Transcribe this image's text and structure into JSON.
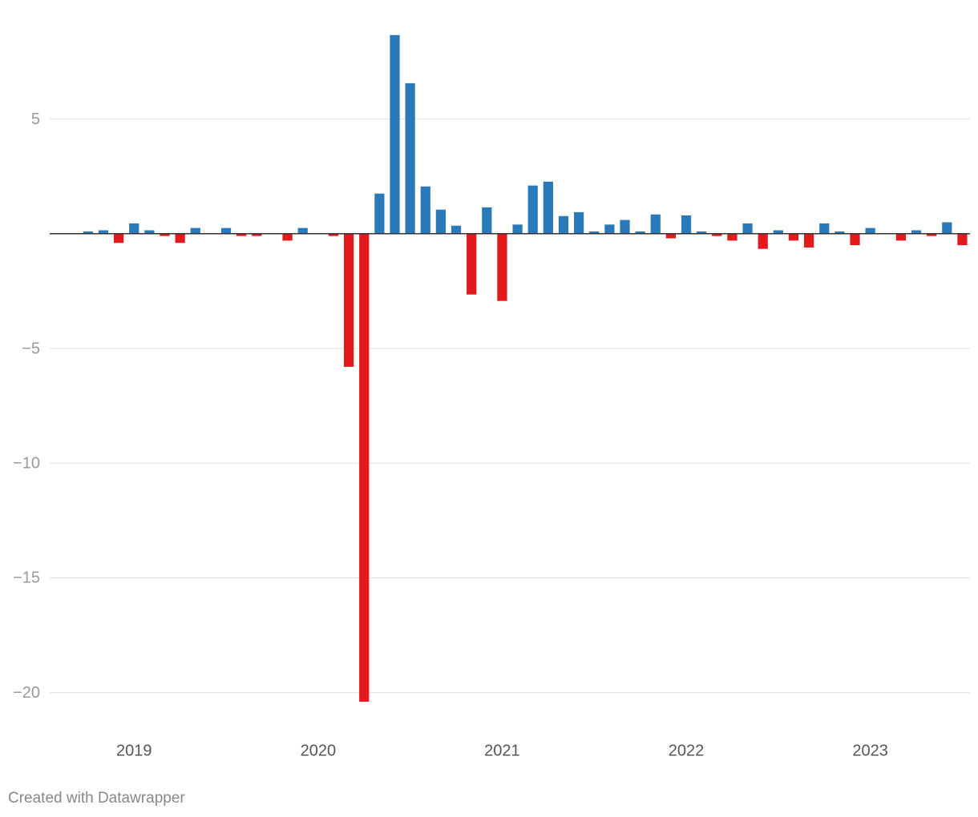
{
  "chart_data": {
    "type": "bar",
    "categories": [
      null,
      null,
      null,
      null,
      null,
      "2019",
      null,
      null,
      null,
      null,
      null,
      null,
      null,
      null,
      null,
      null,
      null,
      "2020",
      null,
      null,
      null,
      null,
      null,
      null,
      null,
      null,
      null,
      null,
      null,
      "2021",
      null,
      null,
      null,
      null,
      null,
      null,
      null,
      null,
      null,
      null,
      null,
      "2022",
      null,
      null,
      null,
      null,
      null,
      null,
      null,
      null,
      null,
      null,
      null,
      "2023",
      null,
      null,
      null,
      null,
      null,
      null
    ],
    "values": [
      0,
      0,
      0.1,
      0.15,
      -0.4,
      0.45,
      0.15,
      -0.1,
      -0.4,
      0.25,
      0,
      0.25,
      -0.1,
      -0.1,
      0,
      -0.3,
      0.25,
      0,
      -0.1,
      -5.8,
      -20.4,
      1.75,
      8.66,
      6.56,
      2.06,
      1.05,
      0.35,
      -2.65,
      1.15,
      -2.93,
      0.4,
      2.1,
      2.27,
      0.77,
      0.94,
      0.1,
      0.4,
      0.6,
      0.1,
      0.84,
      -0.2,
      0.8,
      0.1,
      -0.1,
      -0.3,
      0.45,
      -0.66,
      0.15,
      -0.3,
      -0.6,
      0.45,
      0.1,
      -0.5,
      0.25,
      0,
      -0.3,
      0.15,
      -0.1,
      0.5,
      -0.5
    ],
    "colors": {
      "positive": "#2a7ab9",
      "negative": "#e31a1c"
    },
    "ylim": [
      -20.5,
      9
    ],
    "yticks": [
      5,
      {
        "value": -5,
        "label": "−5"
      },
      {
        "value": -10,
        "label": "−10"
      },
      {
        "value": -15,
        "label": "−15"
      },
      {
        "value": -20,
        "label": "−20"
      }
    ],
    "grid": true,
    "footer": "Created with Datawrapper"
  }
}
